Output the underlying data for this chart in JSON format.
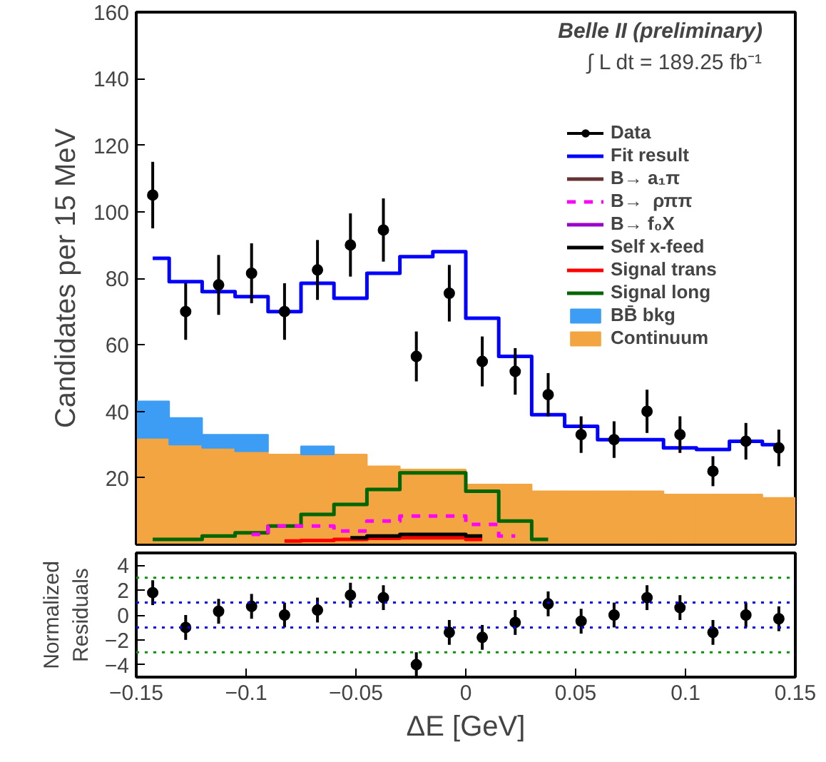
{
  "chart_data": [
    {
      "type": "scatter",
      "ylabel": "Candidates per 15 MeV",
      "annotations": [
        "Belle II (preliminary)",
        "∫ L dt = 189.25 fb⁻¹"
      ],
      "x": [
        -0.1425,
        -0.1275,
        -0.1125,
        -0.0975,
        -0.0825,
        -0.0675,
        -0.0525,
        -0.0375,
        -0.0225,
        -0.0075,
        0.0075,
        0.0225,
        0.0375,
        0.0525,
        0.0675,
        0.0825,
        0.0975,
        0.1125,
        0.1275,
        0.1425
      ],
      "xlim": [
        -0.15,
        0.15
      ],
      "ylim": [
        0,
        160
      ],
      "yticks": [
        20,
        40,
        60,
        80,
        100,
        120,
        140,
        160
      ],
      "tick_labels": "y",
      "grid": false,
      "legend": "right",
      "stacked": true,
      "series": [
        {
          "name": "Continuum",
          "type": "bar",
          "color": "#f3a541",
          "values": [
            32,
            30,
            29,
            28,
            27,
            27,
            27,
            23.5,
            22.5,
            22.5,
            18,
            18,
            16,
            16,
            16,
            16,
            15,
            15,
            15,
            14
          ]
        },
        {
          "name": "BB̄ bkg",
          "type": "bar",
          "color": "#3d9df5",
          "values": [
            11,
            8,
            4,
            5,
            null,
            2.5,
            null,
            null,
            null,
            null,
            null,
            null,
            null,
            null,
            null,
            null,
            null,
            null,
            null,
            null
          ]
        },
        {
          "name": "Signal long",
          "type": "step",
          "color": "#006600",
          "values": [
            1.5,
            1.5,
            2.5,
            3.5,
            5.5,
            9,
            12,
            16.5,
            21.5,
            21.5,
            16,
            7,
            1.5,
            null,
            null,
            null,
            null,
            null,
            null,
            null
          ]
        },
        {
          "name": "Signal trans",
          "type": "step",
          "color": "#ff0000",
          "values": [
            null,
            null,
            null,
            null,
            1,
            1.2,
            1.5,
            1.8,
            2,
            2,
            1.5,
            null,
            null,
            null,
            null,
            null,
            null,
            null,
            null,
            null
          ]
        },
        {
          "name": "Self x-feed",
          "type": "step",
          "color": "#000000",
          "values": [
            null,
            null,
            null,
            null,
            null,
            null,
            2,
            2.5,
            3,
            3,
            2.5,
            null,
            null,
            null,
            null,
            null,
            null,
            null,
            null,
            null
          ]
        },
        {
          "name": "B→ f₀X",
          "type": "step",
          "color": "#9900cc",
          "values": [
            null,
            null,
            null,
            null,
            null,
            null,
            null,
            null,
            null,
            null,
            null,
            null,
            null,
            null,
            null,
            null,
            null,
            null,
            null,
            null
          ]
        },
        {
          "name": "B→  ρππ",
          "type": "step",
          "color": "#ff00ff",
          "line_style": "dashed",
          "values": [
            null,
            null,
            null,
            3,
            5.5,
            5.5,
            4,
            7,
            8.5,
            8.5,
            6,
            2.5,
            null,
            null,
            null,
            null,
            null,
            null,
            null,
            null
          ]
        },
        {
          "name": "B→ a₁π",
          "type": "step",
          "color": "#663333",
          "values": [
            null,
            null,
            null,
            null,
            null,
            null,
            null,
            null,
            null,
            null,
            null,
            null,
            null,
            null,
            null,
            null,
            null,
            null,
            null,
            null
          ]
        },
        {
          "name": "Fit result",
          "type": "step",
          "color": "#0000ff",
          "values": [
            86,
            79,
            76,
            74.5,
            70,
            78.5,
            74,
            81.5,
            86.5,
            88,
            68,
            56.5,
            39,
            35.5,
            31.5,
            31.5,
            29,
            28.5,
            31,
            30
          ]
        },
        {
          "name": "Data",
          "color": "#000000",
          "values": [
            105,
            70,
            78,
            81.5,
            70,
            82.5,
            90,
            94.5,
            56.5,
            75.5,
            55,
            52,
            45,
            33,
            31.5,
            40,
            33,
            22,
            31,
            29
          ],
          "errors": [
            10,
            8.5,
            9,
            9,
            8.5,
            9,
            9.5,
            9.5,
            7.5,
            8.5,
            7.5,
            7,
            6.5,
            5.5,
            5.5,
            6.5,
            5.5,
            4.5,
            5.5,
            5.5
          ]
        }
      ]
    },
    {
      "type": "scatter",
      "ylabel": "Normalized\nResiduals",
      "xlabel": "ΔE [GeV]",
      "grid": false,
      "x": [
        -0.1425,
        -0.1275,
        -0.1125,
        -0.0975,
        -0.0825,
        -0.0675,
        -0.0525,
        -0.0375,
        -0.0225,
        -0.0075,
        0.0075,
        0.0225,
        0.0375,
        0.0525,
        0.0675,
        0.0825,
        0.0975,
        0.1125,
        0.1275,
        0.1425
      ],
      "xlim": [
        -0.15,
        0.15
      ],
      "xticks": [
        -0.15,
        -0.1,
        -0.05,
        0,
        0.05,
        0.1,
        0.15
      ],
      "ylim": [
        -5,
        5
      ],
      "yticks": [
        -4,
        -2,
        0,
        2,
        4
      ],
      "ref_lines": [
        {
          "axis": "y",
          "value": 3,
          "color": "#009900",
          "line_style": "dotted"
        },
        {
          "axis": "y",
          "value": 1,
          "color": "#0000ff",
          "line_style": "dotted"
        },
        {
          "axis": "y",
          "value": -1,
          "color": "#0000ff",
          "line_style": "dotted"
        },
        {
          "axis": "y",
          "value": -3,
          "color": "#009900",
          "line_style": "dotted"
        }
      ],
      "series": [
        {
          "color": "#000000",
          "values": [
            1.8,
            -1,
            0.3,
            0.7,
            0,
            0.4,
            1.6,
            1.4,
            -4,
            -1.4,
            -1.8,
            -0.6,
            0.9,
            -0.5,
            0,
            1.4,
            0.6,
            -1.4,
            0,
            -0.3
          ],
          "errors": [
            1,
            1,
            1,
            1,
            1,
            1,
            1,
            1,
            1,
            1,
            1,
            1,
            1,
            1,
            1,
            1,
            1,
            1,
            1,
            1
          ]
        }
      ]
    }
  ]
}
